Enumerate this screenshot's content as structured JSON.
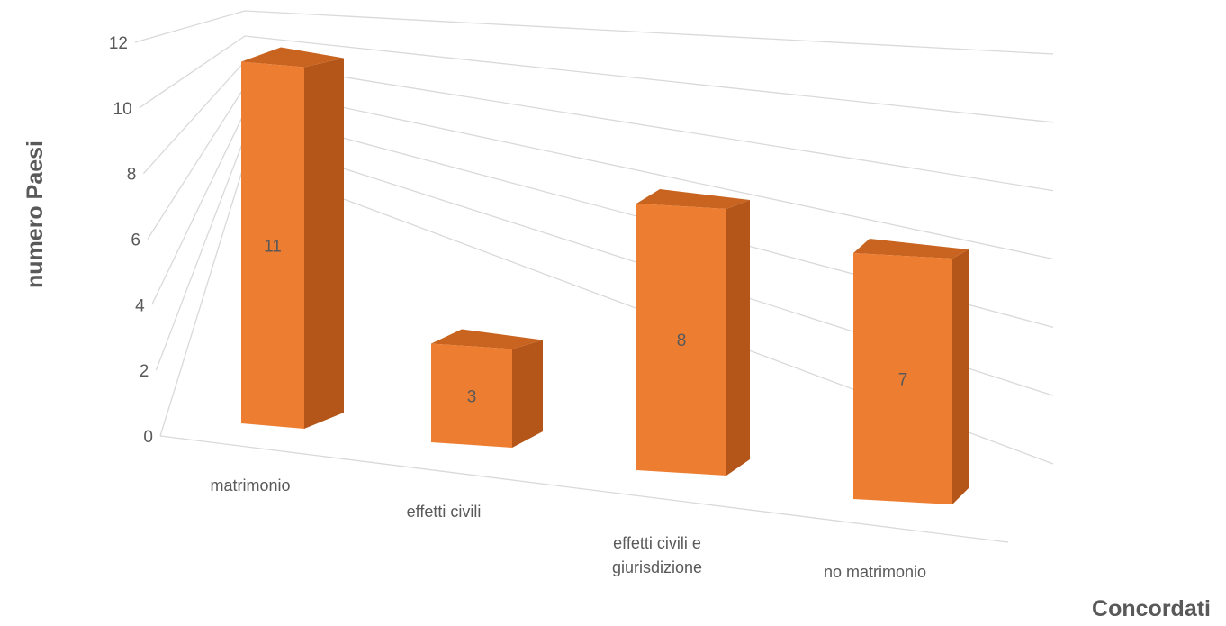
{
  "chart_data": {
    "type": "bar",
    "categories": [
      "matrimonio",
      "effetti civili",
      "effetti civili e giurisdizione",
      "no matrimonio"
    ],
    "category_lines": [
      [
        "matrimonio"
      ],
      [
        "effetti civili"
      ],
      [
        "effetti civili e",
        "giurisdizione"
      ],
      [
        "no matrimonio"
      ]
    ],
    "values": [
      11,
      3,
      8,
      7
    ],
    "data_labels": [
      "11",
      "3",
      "8",
      "7"
    ],
    "ylabel": "numero Paesi",
    "xlabel": "Concordati",
    "ylim": [
      0,
      12
    ],
    "yticks": [
      0,
      2,
      4,
      6,
      8,
      10,
      12
    ],
    "grid": true,
    "style": "3d-column",
    "colors": {
      "front": "#ed7d31",
      "side": "#b4561a",
      "top": "#c86420",
      "grid": "#d9d9d9",
      "text": "#595959"
    }
  }
}
